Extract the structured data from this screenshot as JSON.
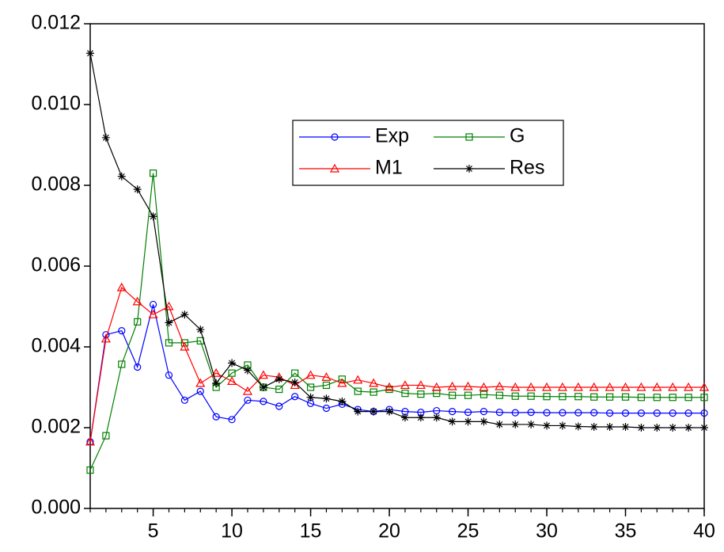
{
  "chart_data": {
    "type": "line",
    "x": [
      1,
      2,
      3,
      4,
      5,
      6,
      7,
      8,
      9,
      10,
      11,
      12,
      13,
      14,
      15,
      16,
      17,
      18,
      19,
      20,
      21,
      22,
      23,
      24,
      25,
      26,
      27,
      28,
      29,
      30,
      31,
      32,
      33,
      34,
      35,
      36,
      37,
      38,
      39,
      40
    ],
    "xlim": [
      1,
      40
    ],
    "xticks": [
      5,
      10,
      15,
      20,
      25,
      30,
      35,
      40
    ],
    "ylim": [
      0,
      0.012
    ],
    "yticks": [
      {
        "value": 0,
        "label": "0.000"
      },
      {
        "value": 0.002,
        "label": "0.002"
      },
      {
        "value": 0.004,
        "label": "0.004"
      },
      {
        "value": 0.006,
        "label": "0.006"
      },
      {
        "value": 0.008,
        "label": "0.008"
      },
      {
        "value": 0.01,
        "label": "0.010"
      },
      {
        "value": 0.012,
        "label": "0.012"
      }
    ],
    "grid": false,
    "legend": "top-center",
    "series": [
      {
        "name": "Exp",
        "color": "#0000ff",
        "marker": "circle",
        "values": [
          0.00165,
          0.0043,
          0.0044,
          0.0035,
          0.00505,
          0.0033,
          0.00268,
          0.0029,
          0.00227,
          0.0022,
          0.00268,
          0.00265,
          0.00253,
          0.00277,
          0.0026,
          0.00248,
          0.00258,
          0.00245,
          0.0024,
          0.00245,
          0.0024,
          0.00238,
          0.00242,
          0.0024,
          0.00238,
          0.0024,
          0.00238,
          0.00237,
          0.00238,
          0.00237,
          0.00237,
          0.00237,
          0.00237,
          0.00236,
          0.00236,
          0.00236,
          0.00236,
          0.00236,
          0.00236,
          0.00236
        ]
      },
      {
        "name": "G",
        "color": "#008000",
        "marker": "square",
        "values": [
          0.00095,
          0.0018,
          0.00357,
          0.00462,
          0.0083,
          0.0041,
          0.0041,
          0.00415,
          0.003,
          0.00335,
          0.00355,
          0.003,
          0.00295,
          0.00335,
          0.003,
          0.00305,
          0.0032,
          0.0029,
          0.00288,
          0.00295,
          0.00285,
          0.00283,
          0.00285,
          0.0028,
          0.0028,
          0.00282,
          0.0028,
          0.00278,
          0.00278,
          0.00277,
          0.00277,
          0.00277,
          0.00276,
          0.00276,
          0.00276,
          0.00275,
          0.00275,
          0.00275,
          0.00275,
          0.00275
        ]
      },
      {
        "name": "M1",
        "color": "#ff0000",
        "marker": "triangle",
        "values": [
          0.00165,
          0.0042,
          0.00547,
          0.00512,
          0.0048,
          0.005,
          0.004,
          0.0031,
          0.00335,
          0.00315,
          0.0029,
          0.0033,
          0.00325,
          0.00305,
          0.0033,
          0.00325,
          0.0031,
          0.00318,
          0.0031,
          0.003,
          0.00305,
          0.00305,
          0.003,
          0.00302,
          0.00302,
          0.003,
          0.00302,
          0.003,
          0.003,
          0.003,
          0.003,
          0.003,
          0.003,
          0.003,
          0.003,
          0.003,
          0.003,
          0.003,
          0.003,
          0.003
        ]
      },
      {
        "name": "Res",
        "color": "#000000",
        "marker": "star",
        "values": [
          0.01127,
          0.00918,
          0.00822,
          0.0079,
          0.00723,
          0.0046,
          0.0048,
          0.00443,
          0.0031,
          0.0036,
          0.00342,
          0.003,
          0.0032,
          0.00312,
          0.00275,
          0.00272,
          0.00265,
          0.0024,
          0.0024,
          0.0024,
          0.00225,
          0.00225,
          0.00225,
          0.00215,
          0.00215,
          0.00215,
          0.00208,
          0.00208,
          0.00208,
          0.00205,
          0.00205,
          0.00203,
          0.00202,
          0.00202,
          0.00202,
          0.002,
          0.002,
          0.002,
          0.002,
          0.002
        ]
      }
    ]
  }
}
